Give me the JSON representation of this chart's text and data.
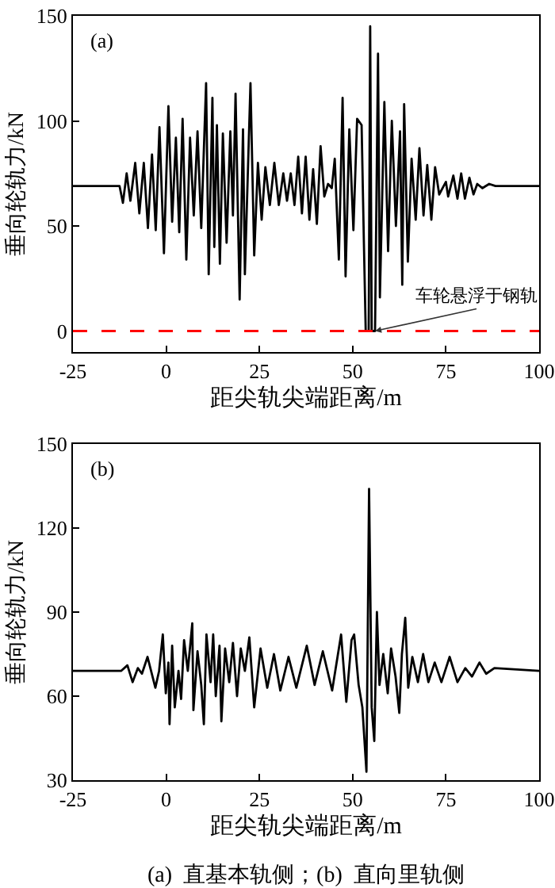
{
  "chart_data": [
    {
      "type": "line",
      "xlabel": "距尖轨尖端距离/m",
      "ylabel": "垂向轮轨力/kN",
      "xlim": [
        -25,
        100
      ],
      "xticks": [
        -25,
        0,
        25,
        50,
        75,
        100
      ],
      "ylim": [
        -10,
        150
      ],
      "yticks": [
        0,
        50,
        100,
        150
      ],
      "grid": false,
      "marker": "none",
      "line_style": "solid",
      "series": [
        {
          "color": "#000000",
          "x": [
            -25,
            -12.5,
            -11.6,
            -10.6,
            -9.6,
            -8.3,
            -7.2,
            -6.0,
            -4.9,
            -3.8,
            -2.8,
            -1.8,
            -0.6,
            0.6,
            1.6,
            2.6,
            3.5,
            4.4,
            5.4,
            6.4,
            7.4,
            8.4,
            9.4,
            10.7,
            11.4,
            12.4,
            12.9,
            13.6,
            14.4,
            15.2,
            16.2,
            17.2,
            17.9,
            18.6,
            19.7,
            20.6,
            21.1,
            22.6,
            23.6,
            24.6,
            25.6,
            26.6,
            27.8,
            29.0,
            30.2,
            31.4,
            32.4,
            33.4,
            34.4,
            35.4,
            36.4,
            37.4,
            38.4,
            39.4,
            40.4,
            41.4,
            42.4,
            43.4,
            44.4,
            45.2,
            46.3,
            47.3,
            48.1,
            49.1,
            50.2,
            51.2,
            52.4,
            53.0,
            53.5,
            54.3,
            54.7,
            55.1,
            56.0,
            56.8,
            57.3,
            58.5,
            59.5,
            60.5,
            61.6,
            62.7,
            63.3,
            63.8,
            64.8,
            65.8,
            66.9,
            67.9,
            69.0,
            70.0,
            71.1,
            72.1,
            73.2,
            75.0,
            75.6,
            77.0,
            78.1,
            79.1,
            80.1,
            81.3,
            82.4,
            83.4,
            84.8,
            86.6,
            88.3,
            100
          ],
          "values": [
            69,
            69,
            61,
            75,
            62,
            80,
            56,
            80,
            49,
            84,
            48,
            97,
            37,
            107,
            52,
            92,
            47,
            101,
            34,
            92,
            55,
            95,
            49,
            118,
            27,
            111,
            40,
            98,
            32,
            94,
            42,
            95,
            55,
            113,
            15,
            96,
            27,
            118,
            36,
            80,
            53,
            78,
            60,
            80,
            60,
            75,
            62,
            75,
            60,
            83,
            56,
            83,
            53,
            77,
            51,
            88,
            64,
            70,
            68,
            82,
            34,
            111,
            26,
            96,
            48,
            101,
            98,
            43,
            0,
            0,
            145,
            0,
            0,
            132,
            16,
            109,
            38,
            100,
            50,
            95,
            22,
            108,
            33,
            82,
            53,
            87,
            55,
            79,
            53,
            78,
            65,
            71,
            64,
            74,
            63,
            75,
            63,
            73,
            65,
            70,
            68,
            70,
            69,
            69
          ]
        }
      ],
      "ref_lines": [
        {
          "axis": "y",
          "value": 0,
          "color": "#ff0000",
          "line_style": "dashed"
        }
      ],
      "annotations": [
        "(a)",
        {
          "text": "车轮悬浮于钢轨",
          "x": 56,
          "y": 0
        }
      ]
    },
    {
      "type": "line",
      "xlabel": "距尖轨尖端距离/m",
      "ylabel": "垂向轮轨力/kN",
      "xlim": [
        -25,
        100
      ],
      "xticks": [
        -25,
        0,
        25,
        50,
        75,
        100
      ],
      "ylim": [
        30,
        150
      ],
      "yticks": [
        30,
        60,
        90,
        120,
        150
      ],
      "grid": false,
      "marker": "none",
      "line_style": "solid",
      "series": [
        {
          "color": "#000000",
          "x": [
            -25,
            -12.1,
            -10.4,
            -9.0,
            -7.6,
            -6.5,
            -5.0,
            -2.9,
            -1.9,
            -0.9,
            -0.1,
            0.6,
            0.9,
            1.6,
            2.3,
            3.3,
            4.0,
            4.8,
            5.8,
            7.0,
            7.3,
            8.4,
            9.4,
            10.1,
            10.8,
            11.9,
            12.6,
            13.3,
            14.3,
            14.8,
            15.8,
            16.9,
            17.9,
            19.0,
            20.0,
            21.1,
            22.3,
            23.6,
            25.3,
            27.1,
            28.9,
            30.6,
            32.8,
            34.9,
            37.7,
            39.8,
            42.0,
            44.5,
            46.9,
            48.3,
            49.7,
            50.4,
            51.6,
            52.6,
            53.7,
            54.4,
            55.1,
            55.8,
            56.5,
            57.2,
            58.2,
            59.4,
            60.3,
            61.5,
            62.5,
            63.2,
            64.1,
            64.9,
            66.0,
            67.5,
            68.9,
            70.3,
            72.0,
            73.8,
            76.0,
            78.1,
            80.2,
            82.0,
            84.0,
            85.8,
            88.0,
            100
          ],
          "values": [
            69,
            69,
            71,
            65,
            70,
            68,
            74,
            63,
            69,
            82,
            61,
            72,
            50,
            78,
            56,
            69,
            59,
            80,
            69,
            86,
            55,
            76,
            64,
            50,
            82,
            65,
            82,
            60,
            78,
            51,
            77,
            65,
            79,
            60,
            77,
            69,
            81,
            56,
            77,
            63,
            75,
            62,
            74,
            63,
            78,
            64,
            76,
            62,
            82,
            58,
            80,
            82,
            64,
            56,
            33,
            134,
            56,
            44,
            90,
            64,
            75,
            61,
            77,
            67,
            54,
            75,
            88,
            63,
            74,
            65,
            75,
            65,
            72,
            65,
            74,
            65,
            70,
            67,
            72,
            68,
            70,
            69
          ]
        }
      ],
      "annotations": [
        "(b)",
        "(a)  直基本轨侧；(b)  直向里轨侧"
      ]
    }
  ]
}
